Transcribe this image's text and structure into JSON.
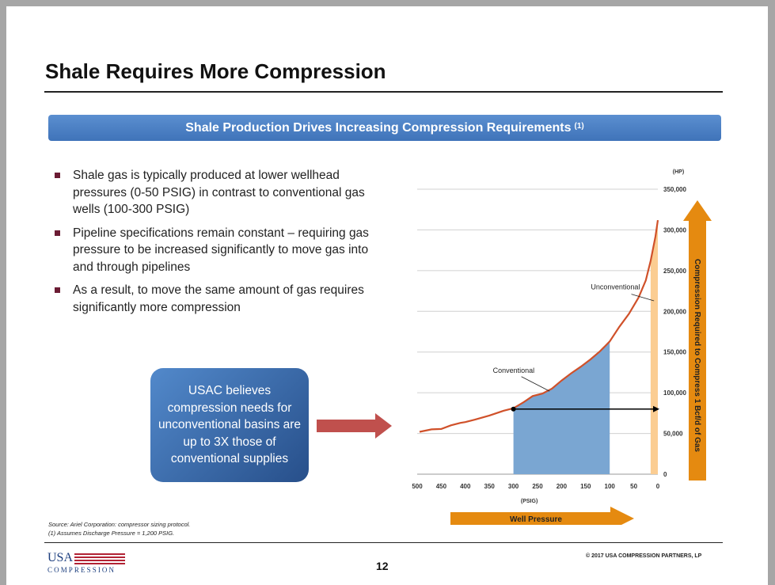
{
  "slide": {
    "title": "Shale Requires More Compression",
    "banner_text": "Shale Production Drives Increasing Compression Requirements",
    "banner_sup": "(1)",
    "bullets": [
      "Shale gas is typically produced at lower wellhead pressures (0-50 PSIG) in contrast to conventional gas wells (100-300 PSIG)",
      "Pipeline specifications remain constant – requiring gas pressure to be increased significantly to move gas into and through pipelines",
      "As a result, to move the same amount of gas requires significantly more compression"
    ],
    "callout": "USAC believes compression needs for unconventional basins are up to 3X those of conventional supplies",
    "source_note": "Source: Ariel Corporation: compressor sizing protocol.",
    "footnote": "(1)    Assumes Discharge Pressure = 1,200 PSIG.",
    "copyright": "© 2017 USA COMPRESSION PARTNERS, LP",
    "page_number": "12",
    "logo_top": "USA",
    "logo_bottom": "COMPRESSION"
  },
  "chart_data": {
    "type": "line",
    "x_reversed": true,
    "x_ticks": [
      500,
      450,
      400,
      350,
      300,
      250,
      200,
      150,
      100,
      50,
      0
    ],
    "x_unit": "(PSIG)",
    "xlabel": "Well Pressure",
    "y_ticks": [
      0,
      50000,
      100000,
      150000,
      200000,
      250000,
      300000,
      350000
    ],
    "y_tick_labels": [
      "0",
      "50,000",
      "100,000",
      "150,000",
      "200,000",
      "250,000",
      "300,000",
      "350,000"
    ],
    "y_unit": "(HP)",
    "ylabel": "Compression Required to Compress 1 Bcf/d of Gas",
    "xlim": [
      500,
      0
    ],
    "ylim": [
      0,
      350000
    ],
    "grid": true,
    "series": [
      {
        "color": "#d0512a",
        "x": [
          495,
          470,
          450,
          430,
          410,
          400,
          380,
          350,
          320,
          300,
          280,
          260,
          240,
          220,
          200,
          180,
          160,
          140,
          120,
          100,
          80,
          60,
          40,
          25,
          15,
          5,
          0
        ],
        "y": [
          52000,
          55000,
          55500,
          60000,
          63000,
          64000,
          67000,
          72000,
          78000,
          81000,
          88000,
          96000,
          99000,
          105000,
          115000,
          124000,
          132000,
          141000,
          151000,
          163000,
          181000,
          197000,
          217000,
          238000,
          262000,
          292000,
          312000
        ]
      }
    ],
    "regions": [
      {
        "label": "Conventional",
        "x_range": [
          300,
          100
        ],
        "color": "#7aa6d2"
      },
      {
        "label": "Unconventional",
        "x_range": [
          15,
          0
        ],
        "color": "#fbcd92"
      }
    ],
    "reference_line": {
      "from_x": 300,
      "y": 80000
    },
    "colors": {
      "y_arrow": "#e58a10",
      "x_arrow": "#e58a10",
      "callout_arrow": "#c0504d"
    }
  }
}
